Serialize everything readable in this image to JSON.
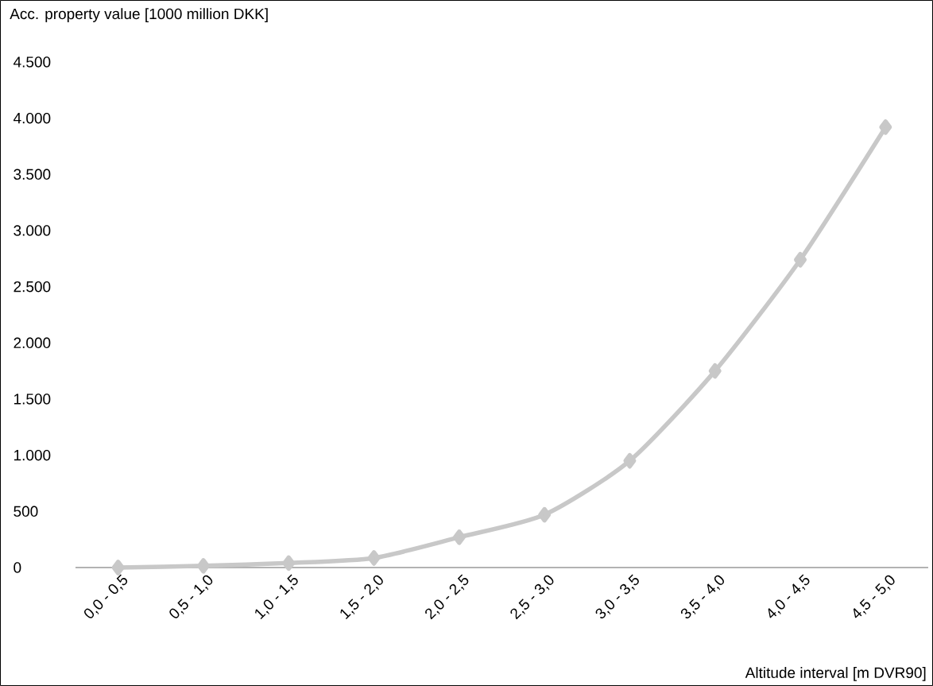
{
  "chart_data": {
    "type": "line",
    "xlabel": "Altitude interval [m DVR90]",
    "ylabel": "Acc. property value [1000 million DKK]",
    "categories": [
      "0,0 - 0,5",
      "0,5 - 1,0",
      "1,0 - 1,5",
      "1,5 - 2,0",
      "2,0 - 2,5",
      "2,5 - 3,0",
      "3,0 - 3,5",
      "3,5 - 4,0",
      "4,0 - 4,5",
      "4,5 - 5,0"
    ],
    "series": [
      {
        "color": "#c8c8c8",
        "values": [
          0,
          15,
          40,
          85,
          270,
          470,
          950,
          1750,
          2740,
          3920
        ]
      }
    ],
    "ylim": [
      0,
      4500
    ],
    "yticks": [
      0,
      500,
      {
        "value": 1000,
        "label": "1.000"
      },
      {
        "value": 1500,
        "label": "1.500"
      },
      {
        "value": 2000,
        "label": "2.000"
      },
      {
        "value": 2500,
        "label": "2.500"
      },
      {
        "value": 3000,
        "label": "3.000"
      },
      {
        "value": 3500,
        "label": "3.500"
      },
      {
        "value": 4000,
        "label": "4.000"
      },
      {
        "value": 4500,
        "label": "4.500"
      }
    ],
    "marker": "diamond",
    "line_style": "solid",
    "grid": false
  }
}
